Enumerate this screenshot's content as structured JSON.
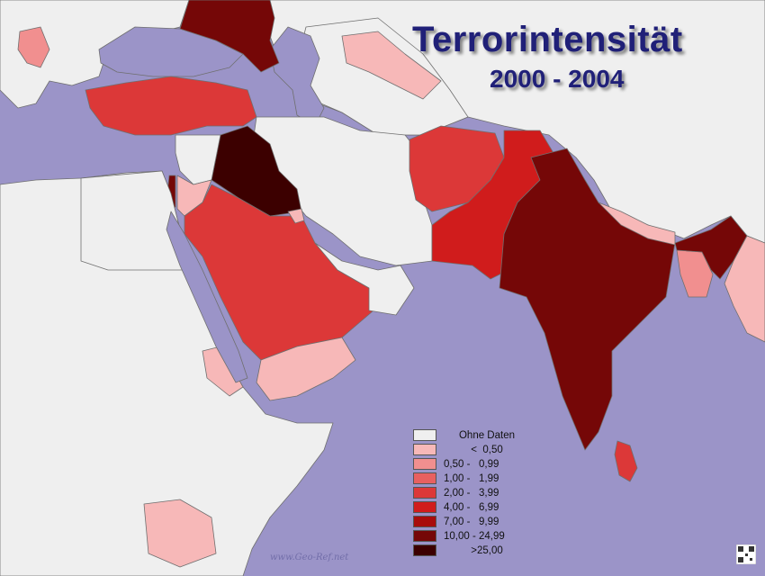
{
  "title": "Terrorintensität",
  "subtitle": "2000 - 2004",
  "watermark": "www.Geo-Ref.net",
  "colors": {
    "sea": "#9b94c8",
    "land_no_data": "#efefef",
    "border": "#7a7a7a",
    "title": "#202078"
  },
  "legend": [
    {
      "label": "Ohne Daten",
      "color": "#efefef",
      "center": true
    },
    {
      "label": "<  0,50",
      "color": "#f7b8b8",
      "center": true
    },
    {
      "label": "0,50 -   0,99",
      "color": "#f18f8f"
    },
    {
      "label": "1,00 -   1,99",
      "color": "#e86060"
    },
    {
      "label": "2,00 -   3,99",
      "color": "#dc3838"
    },
    {
      "label": "4,00 -   6,99",
      "color": "#d01c1c"
    },
    {
      "label": "7,00 -   9,99",
      "color": "#a80c0c"
    },
    {
      "label": "10,00 - 24,99",
      "color": "#750707"
    },
    {
      "label": ">25,00",
      "color": "#3c0000",
      "center": true
    }
  ]
}
